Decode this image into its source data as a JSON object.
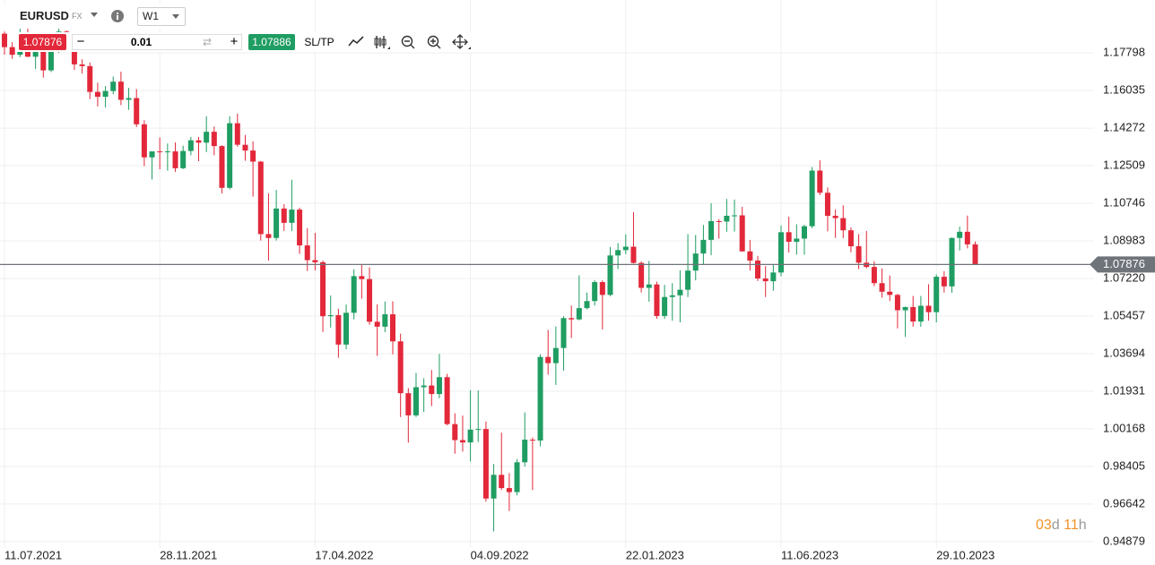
{
  "toolbar": {
    "symbol": "EURUSD",
    "market": "FX",
    "timeframe": "W1",
    "sell": "1.07876",
    "volume": "0.01",
    "buy": "1.07886",
    "sltp": "SL/TP"
  },
  "countdown": [
    "03",
    "d",
    "11",
    "h"
  ],
  "chart_data": {
    "type": "candlestick",
    "categories": [
      "11.07.2021",
      null,
      null,
      null,
      null,
      null,
      null,
      null,
      null,
      null,
      null,
      null,
      null,
      null,
      null,
      null,
      null,
      null,
      null,
      null,
      "28.11.2021",
      null,
      null,
      null,
      null,
      null,
      null,
      null,
      null,
      null,
      null,
      null,
      null,
      null,
      null,
      null,
      null,
      null,
      null,
      null,
      "17.04.2022",
      null,
      null,
      null,
      null,
      null,
      null,
      null,
      null,
      null,
      null,
      null,
      null,
      null,
      null,
      null,
      null,
      null,
      null,
      null,
      "04.09.2022",
      null,
      null,
      null,
      null,
      null,
      null,
      null,
      null,
      null,
      null,
      null,
      null,
      null,
      null,
      null,
      null,
      null,
      null,
      null,
      "22.01.2023",
      null,
      null,
      null,
      null,
      null,
      null,
      null,
      null,
      null,
      null,
      null,
      null,
      null,
      null,
      null,
      null,
      null,
      null,
      null,
      "11.06.2023",
      null,
      null,
      null,
      null,
      null,
      null,
      null,
      null,
      null,
      null,
      null,
      null,
      null,
      null,
      null,
      null,
      null,
      null,
      null,
      "29.10.2023",
      null,
      null,
      null,
      null,
      null
    ],
    "open": [
      1.187,
      1.1807,
      1.1771,
      1.187,
      1.1762,
      1.1795,
      1.1698,
      1.1794,
      1.188,
      1.1812,
      1.1726,
      1.1718,
      1.1597,
      1.1574,
      1.1601,
      1.1645,
      1.156,
      1.1568,
      1.1445,
      1.129,
      1.1318,
      1.1316,
      1.1318,
      1.1239,
      1.132,
      1.137,
      1.1359,
      1.141,
      1.1343,
      1.1147,
      1.145,
      1.1349,
      1.1322,
      1.127,
      1.093,
      1.0912,
      1.105,
      1.0983,
      1.1045,
      1.0877,
      1.0808,
      1.0798,
      1.0545,
      1.055,
      1.0412,
      1.0561,
      1.0733,
      1.0719,
      1.0519,
      1.0496,
      1.0554,
      1.0427,
      1.0184,
      1.008,
      1.0212,
      1.022,
      1.018,
      1.0259,
      1.0039,
      0.9964,
      0.9953,
      1.0013,
      1.0016,
      0.969,
      0.9801,
      0.9739,
      0.972,
      0.986,
      0.9966,
      0.9962,
      1.0354,
      1.0325,
      1.0396,
      1.0536,
      1.053,
      1.0583,
      1.0616,
      1.0705,
      1.0645,
      1.083,
      1.0855,
      1.0871,
      1.0795,
      1.0678,
      1.0694,
      1.0546,
      1.0635,
      1.0643,
      1.0669,
      1.0759,
      1.0839,
      1.0903,
      1.0991,
      1.0989,
      1.1016,
      1.1018,
      1.0849,
      1.0806,
      1.0722,
      1.0709,
      1.075,
      1.0939,
      1.0894,
      1.0909,
      1.0967,
      1.1228,
      1.1124,
      1.1016,
      1.1005,
      1.0948,
      1.0873,
      1.0796,
      1.0776,
      1.07,
      1.066,
      1.0645,
      1.0573,
      1.0588,
      1.052,
      1.0594,
      1.0564,
      1.073,
      1.0685,
      1.0912,
      1.0941,
      1.0882
    ],
    "high": [
      1.188,
      1.183,
      1.1909,
      1.19,
      1.1805,
      1.1805,
      1.1802,
      1.1909,
      1.1885,
      1.1846,
      1.175,
      1.1735,
      1.164,
      1.1624,
      1.1669,
      1.1692,
      1.1616,
      1.161,
      1.1464,
      1.131,
      1.1383,
      1.1355,
      1.136,
      1.1345,
      1.1386,
      1.1386,
      1.1483,
      1.1434,
      1.1347,
      1.1483,
      1.1495,
      1.1395,
      1.1365,
      1.1273,
      1.1121,
      1.1137,
      1.107,
      1.1185,
      1.1054,
      1.0958,
      1.0936,
      1.0806,
      1.0642,
      1.058,
      1.06,
      1.0765,
      1.0787,
      1.0774,
      1.0601,
      1.0614,
      1.0615,
      1.0463,
      1.0208,
      1.0279,
      1.0254,
      1.0293,
      1.0368,
      1.0275,
      1.009,
      1.0079,
      1.0198,
      1.0197,
      1.0051,
      0.9852,
      0.9999,
      0.9809,
      0.9875,
      1.0094,
      0.9976,
      1.0366,
      1.0481,
      1.0497,
      1.0545,
      1.0595,
      1.0737,
      1.0656,
      1.0714,
      1.0713,
      1.087,
      1.0888,
      1.0929,
      1.1033,
      1.0802,
      1.0804,
      1.0707,
      1.0692,
      1.07,
      1.076,
      1.093,
      1.0926,
      1.0973,
      1.1075,
      1.1,
      1.1095,
      1.1092,
      1.1058,
      1.0903,
      1.0828,
      1.078,
      1.0788,
      1.0971,
      1.1012,
      1.0976,
      1.0974,
      1.1245,
      1.1276,
      1.1149,
      1.1046,
      1.1065,
      1.0962,
      1.093,
      1.0945,
      1.0803,
      1.0769,
      1.0736,
      1.065,
      1.059,
      1.064,
      1.064,
      1.0695,
      1.0741,
      1.0756,
      1.0914,
      1.0965,
      1.1017,
      1.0895
    ],
    "low": [
      1.1772,
      1.1752,
      1.176,
      1.176,
      1.1705,
      1.1664,
      1.169,
      1.178,
      1.18,
      1.17,
      1.1683,
      1.1563,
      1.1529,
      1.1524,
      1.1586,
      1.1535,
      1.1513,
      1.1432,
      1.1249,
      1.1186,
      1.1234,
      1.1228,
      1.1222,
      1.1235,
      1.13,
      1.1272,
      1.1315,
      1.13,
      1.1121,
      1.114,
      1.134,
      1.1274,
      1.1106,
      1.09,
      1.0806,
      1.09,
      1.0945,
      1.0945,
      1.0837,
      1.0757,
      1.076,
      1.0471,
      1.0492,
      1.035,
      1.039,
      1.053,
      1.0627,
      1.0505,
      1.0359,
      1.047,
      1.0366,
      1.0072,
      0.9952,
      1.0072,
      1.0096,
      1.0123,
      1.016,
      1.0034,
      0.99,
      0.991,
      0.9864,
      0.9955,
      0.9675,
      0.9536,
      0.973,
      0.9632,
      0.9705,
      0.984,
      0.973,
      0.9935,
      1.0271,
      1.0223,
      1.0289,
      1.0443,
      1.0526,
      1.0577,
      1.0595,
      1.0483,
      1.0639,
      1.0766,
      1.0836,
      1.0792,
      1.0656,
      1.0613,
      1.0533,
      1.0533,
      1.0524,
      1.0516,
      1.0635,
      1.0713,
      1.0788,
      1.0831,
      1.0909,
      1.0941,
      1.0942,
      1.0848,
      1.076,
      1.071,
      1.0635,
      1.0664,
      1.0732,
      1.0844,
      1.0834,
      1.0834,
      1.0958,
      1.1113,
      1.0943,
      1.0912,
      1.0911,
      1.0845,
      1.0766,
      1.077,
      1.0686,
      1.0632,
      1.0616,
      1.0488,
      1.0448,
      1.0496,
      1.0495,
      1.0524,
      1.0516,
      1.0656,
      1.0655,
      1.0853,
      1.0863,
      1.0786
    ],
    "close": [
      1.1807,
      1.1771,
      1.187,
      1.1762,
      1.1795,
      1.1698,
      1.1794,
      1.188,
      1.1812,
      1.1726,
      1.1718,
      1.1597,
      1.1574,
      1.1601,
      1.1645,
      1.156,
      1.1568,
      1.1445,
      1.129,
      1.1318,
      1.1316,
      1.1318,
      1.1239,
      1.132,
      1.137,
      1.1359,
      1.141,
      1.1343,
      1.1147,
      1.145,
      1.1349,
      1.1322,
      1.127,
      1.093,
      1.0912,
      1.105,
      1.0983,
      1.1045,
      1.0877,
      1.0808,
      1.0798,
      1.0545,
      1.055,
      1.0412,
      1.0561,
      1.0733,
      1.0719,
      1.0519,
      1.0496,
      1.0554,
      1.0427,
      1.0184,
      1.008,
      1.0212,
      1.022,
      1.018,
      1.0259,
      1.0039,
      0.9964,
      0.9953,
      1.0013,
      1.0016,
      0.969,
      0.9801,
      0.9739,
      0.972,
      0.986,
      0.9966,
      0.9962,
      1.0354,
      1.0325,
      1.0396,
      1.0536,
      1.053,
      1.0583,
      1.0616,
      1.0705,
      1.0645,
      1.083,
      1.0855,
      1.0871,
      1.0795,
      1.0678,
      1.0694,
      1.0546,
      1.0635,
      1.0643,
      1.0669,
      1.0759,
      1.0839,
      1.0903,
      1.0991,
      1.0989,
      1.1016,
      1.1018,
      1.0849,
      1.0806,
      1.0722,
      1.0709,
      1.075,
      1.0939,
      1.0894,
      1.0909,
      1.0967,
      1.1228,
      1.1124,
      1.1016,
      1.1005,
      1.0948,
      1.0873,
      1.0796,
      1.0776,
      1.07,
      1.066,
      1.0645,
      1.0573,
      1.0588,
      1.052,
      1.0594,
      1.0564,
      1.073,
      1.0685,
      1.0912,
      1.0941,
      1.0882,
      1.07876
    ],
    "up_color": "#1f9d62",
    "down_color": "#e2283a",
    "current_price": 1.07876,
    "ylim": [
      0.9458,
      1.2028
    ],
    "yticks": [
      1.17798,
      1.16035,
      1.14272,
      1.12509,
      1.10746,
      1.08983,
      {
        "value": 1.0722,
        "label": "1.07220"
      },
      1.05457,
      1.03694,
      1.01931,
      1.00168,
      0.98405,
      0.96642,
      0.94879
    ],
    "grid": true
  }
}
